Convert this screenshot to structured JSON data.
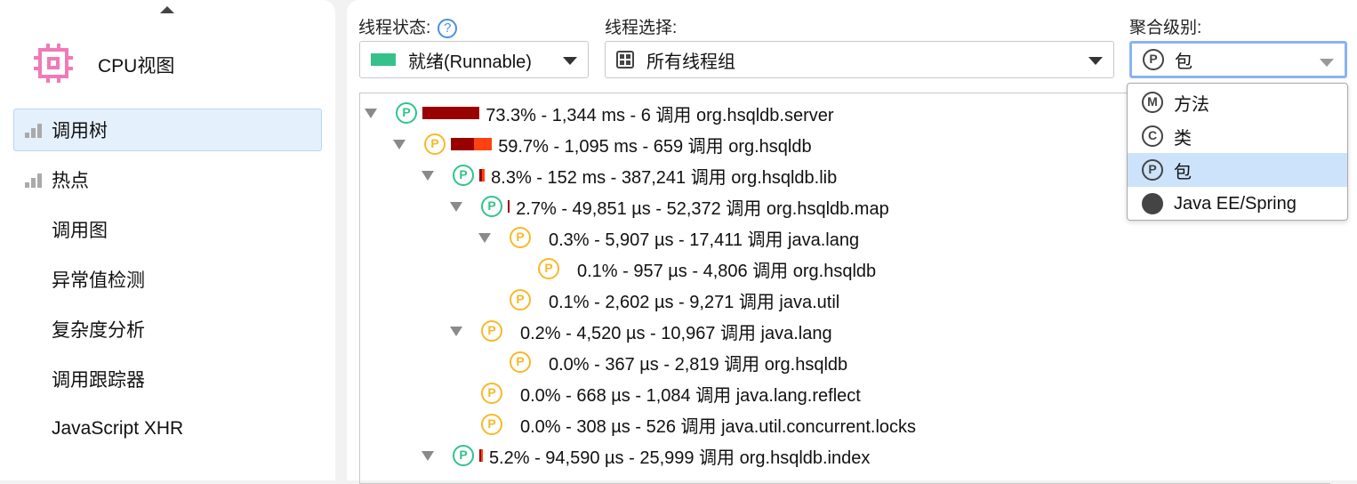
{
  "sidebar": {
    "title": "CPU视图",
    "items": [
      {
        "label": "调用树",
        "selected": true,
        "icon": "bar-chart-icon"
      },
      {
        "label": "热点",
        "icon": "bar-chart-icon"
      },
      {
        "label": "调用图"
      },
      {
        "label": "异常值检测"
      },
      {
        "label": "复杂度分析"
      },
      {
        "label": "调用跟踪器"
      },
      {
        "label": "JavaScript XHR"
      }
    ]
  },
  "filters": {
    "thread_state": {
      "label": "线程状态:",
      "help": "?",
      "value": "就绪(Runnable)",
      "color": "#35c28a"
    },
    "thread_select": {
      "label": "线程选择:",
      "value": "所有线程组"
    },
    "aggregation": {
      "label": "聚合级别:",
      "value": "包",
      "icon": "P",
      "options": [
        {
          "icon": "M",
          "label": "方法"
        },
        {
          "icon": "C",
          "label": "类"
        },
        {
          "icon": "P",
          "label": "包",
          "selected": true
        },
        {
          "icon": "java-ee-spring-icon",
          "label": "Java EE/Spring"
        }
      ]
    }
  },
  "tree": [
    {
      "level": 0,
      "expanded": true,
      "color": "green",
      "bar": [
        14.6,
        0
      ],
      "text": "73.3% - 1,344 ms - 6 调用 org.hsqldb.server"
    },
    {
      "level": 1,
      "expanded": true,
      "color": "yellow",
      "bar": [
        5.9,
        4.6
      ],
      "text": "59.7% - 1,095 ms - 659 调用 org.hsqldb"
    },
    {
      "level": 2,
      "expanded": true,
      "color": "green",
      "bar": [
        0.7,
        0.7
      ],
      "text": "8.3% - 152 ms - 387,241 调用 org.hsqldb.lib"
    },
    {
      "level": 3,
      "expanded": true,
      "color": "green",
      "bar": [
        0.5,
        0
      ],
      "text": "2.7% - 49,851 µs - 52,372 调用 org.hsqldb.map"
    },
    {
      "level": 4,
      "expanded": true,
      "color": "yellow",
      "bar": [
        0,
        0
      ],
      "text": "0.3% - 5,907 µs - 17,411 调用 java.lang"
    },
    {
      "level": 5,
      "color": "yellow",
      "bar": [
        0,
        0
      ],
      "text": "0.1% - 957 µs - 4,806 调用 org.hsqldb"
    },
    {
      "level": 4,
      "color": "yellow",
      "bar": [
        0,
        0
      ],
      "text": "0.1% - 2,602 µs - 9,271 调用 java.util"
    },
    {
      "level": 3,
      "expanded": true,
      "color": "yellow",
      "bar": [
        0,
        0
      ],
      "text": "0.2% - 4,520 µs - 10,967 调用 java.lang"
    },
    {
      "level": 4,
      "color": "yellow",
      "bar": [
        0,
        0
      ],
      "text": "0.0% - 367 µs - 2,819 调用 org.hsqldb"
    },
    {
      "level": 3,
      "color": "yellow",
      "bar": [
        0,
        0
      ],
      "text": "0.0% - 668 µs - 1,084 调用 java.lang.reflect"
    },
    {
      "level": 3,
      "color": "yellow",
      "bar": [
        0,
        0
      ],
      "text": "0.0% - 308 µs - 526 调用 java.util.concurrent.locks"
    },
    {
      "level": 2,
      "expanded": true,
      "color": "green",
      "bar": [
        0.4,
        0.5
      ],
      "text": "5.2% - 94,590 µs - 25,999 调用 org.hsqldb.index"
    }
  ],
  "package_icon": "P"
}
